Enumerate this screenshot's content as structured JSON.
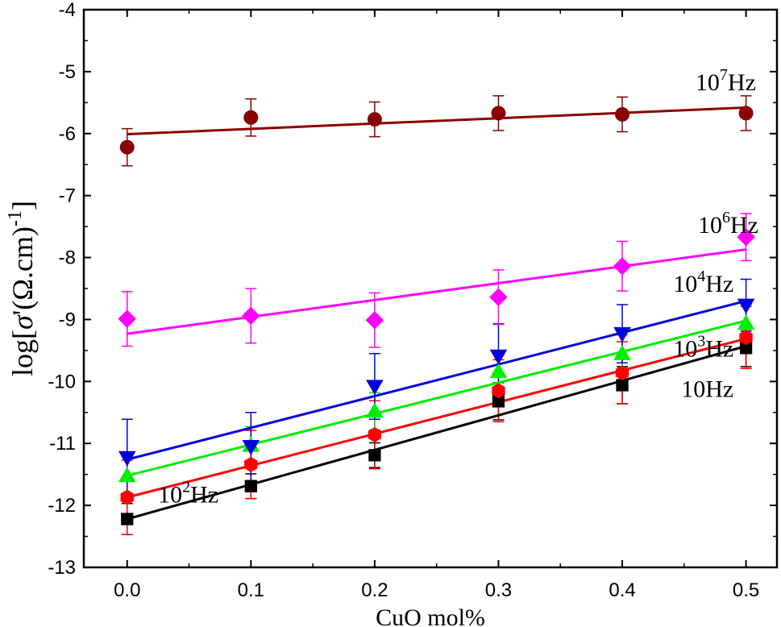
{
  "chart_data": {
    "type": "scatter",
    "xlabel": "CuO mol%",
    "ylabel": {
      "prefix": "log[",
      "symbol": "σ",
      "middle": "'(Ω.cm)",
      "sup": "-1",
      "suffix": "]"
    },
    "xlim": [
      -0.035,
      0.525
    ],
    "ylim": [
      -13,
      -4
    ],
    "xticks": [
      0.0,
      0.1,
      0.2,
      0.3,
      0.4,
      0.5
    ],
    "xtick_labels": [
      "0.0",
      "0.1",
      "0.2",
      "0.3",
      "0.4",
      "0.5"
    ],
    "yticks": [
      -4,
      -5,
      -6,
      -7,
      -8,
      -9,
      -10,
      -11,
      -12,
      -13
    ],
    "ytick_labels": [
      "-4",
      "-5",
      "-6",
      "-7",
      "-8",
      "-9",
      "-10",
      "-11",
      "-12",
      "-13"
    ],
    "grid": false,
    "x": [
      0.0,
      0.1,
      0.2,
      0.3,
      0.4,
      0.5
    ],
    "series": [
      {
        "label_base": "10",
        "label_sup": "",
        "label_unit": "Hz",
        "color": "#000000",
        "marker": "square",
        "values": [
          -12.22,
          -11.69,
          -11.19,
          -10.32,
          -10.06,
          -9.46
        ],
        "errors": [
          0.25,
          0.2,
          0.2,
          0.3,
          0.3,
          0.3
        ],
        "fit": [
          -12.22,
          -9.43
        ]
      },
      {
        "label_base": "10",
        "label_sup": "2",
        "label_unit": "Hz",
        "color": "#ff0000",
        "marker": "hexagon",
        "values": [
          -11.87,
          -11.34,
          -10.86,
          -10.15,
          -9.86,
          -9.29
        ],
        "errors": [
          0.6,
          0.55,
          0.55,
          0.5,
          0.5,
          0.5
        ],
        "fit": [
          -11.87,
          -9.31
        ]
      },
      {
        "label_base": "10",
        "label_sup": "3",
        "label_unit": "Hz",
        "color": "#00ee00",
        "marker": "triangle-up",
        "values": [
          -11.52,
          -11.03,
          -10.48,
          -9.84,
          -9.55,
          -9.06
        ],
        "errors": [
          0.3,
          0.3,
          0.3,
          0.3,
          0.3,
          0.3
        ],
        "fit": [
          -11.52,
          -9.02
        ]
      },
      {
        "label_base": "10",
        "label_sup": "4",
        "label_unit": "Hz",
        "color": "#0000dd",
        "marker": "triangle-down",
        "values": [
          -11.23,
          -11.05,
          -10.08,
          -9.59,
          -9.23,
          -8.77
        ],
        "errors": [
          0.62,
          0.55,
          0.53,
          0.52,
          0.47,
          0.42
        ],
        "fit": [
          -11.26,
          -8.7
        ]
      },
      {
        "label_base": "10",
        "label_sup": "6",
        "label_unit": "Hz",
        "color": "#ff00ff",
        "marker": "diamond",
        "values": [
          -8.99,
          -8.94,
          -9.01,
          -8.64,
          -8.14,
          -7.67
        ],
        "errors": [
          0.44,
          0.44,
          0.44,
          0.44,
          0.4,
          0.38
        ],
        "fit": [
          -9.23,
          -7.87
        ]
      },
      {
        "label_base": "10",
        "label_sup": "7",
        "label_unit": "Hz",
        "color": "#8b0000",
        "marker": "circle",
        "values": [
          -6.22,
          -5.74,
          -5.77,
          -5.67,
          -5.69,
          -5.67
        ],
        "errors": [
          0.3,
          0.3,
          0.28,
          0.28,
          0.28,
          0.28
        ],
        "fit": [
          -6.01,
          -5.58
        ]
      }
    ],
    "annotations": [
      {
        "series": 5,
        "x": 0.508,
        "y": -5.3,
        "anchor": "end"
      },
      {
        "series": 4,
        "x": 0.51,
        "y": -7.6,
        "anchor": "end"
      },
      {
        "series": 3,
        "x": 0.49,
        "y": -8.55,
        "anchor": "end"
      },
      {
        "series": 2,
        "x": 0.49,
        "y": -9.6,
        "anchor": "end"
      },
      {
        "series": 0,
        "x": 0.49,
        "y": -10.25,
        "anchor": "end"
      },
      {
        "series": 1,
        "x": 0.025,
        "y": -11.95,
        "anchor": "start"
      }
    ]
  }
}
